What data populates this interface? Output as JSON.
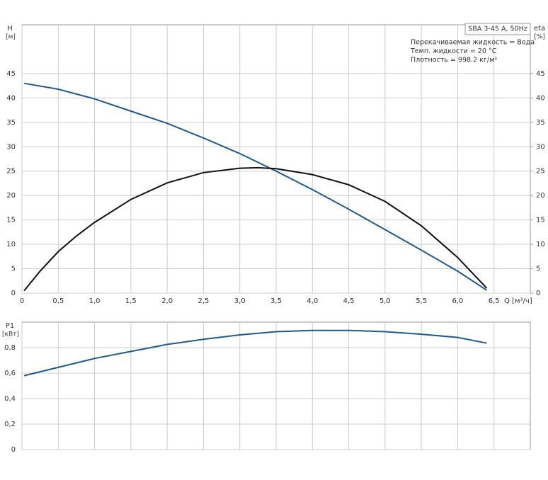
{
  "chart_data": [
    {
      "type": "line",
      "ylabel": "H",
      "yunit": "[м]",
      "y2label": "eta",
      "y2unit": "[%]",
      "xlabel": "Q [м³/ч]",
      "xlim": [
        0,
        7
      ],
      "xticks": [
        0,
        {
          "value": 0.5,
          "label": "0,5"
        },
        {
          "value": 1,
          "label": "1,0"
        },
        {
          "value": 1.5,
          "label": "1,5"
        },
        {
          "value": 2,
          "label": "2,0"
        },
        {
          "value": 2.5,
          "label": "2,5"
        },
        {
          "value": 3,
          "label": "3,0"
        },
        {
          "value": 3.5,
          "label": "3,5"
        },
        {
          "value": 4,
          "label": "4,0"
        },
        {
          "value": 4.5,
          "label": "4,5"
        },
        {
          "value": 5,
          "label": "5,0"
        },
        {
          "value": 5.5,
          "label": "5,5"
        },
        {
          "value": 6,
          "label": "6,0"
        },
        {
          "value": 6.5,
          "label": "6,5"
        }
      ],
      "ylim": [
        0,
        55
      ],
      "yticks": [
        0,
        5,
        10,
        15,
        20,
        25,
        30,
        35,
        40,
        45
      ],
      "y2lim": [
        0,
        55
      ],
      "y2ticks": [
        0,
        5,
        10,
        15,
        20,
        25,
        30,
        35,
        40,
        45
      ],
      "grid": true,
      "info_box": {
        "title": "SBA 3-45 A, 50Hz",
        "lines": [
          "Перекачиваемая жидкость = Вода",
          "Темп. жидкости = 20 °C",
          "Плотность = 998.2 кг/м³"
        ]
      },
      "series": [
        {
          "color": "#1f5a8c",
          "axis": "y",
          "x": [
            0.03,
            0.5,
            1,
            1.5,
            2,
            2.5,
            3,
            3.5,
            4,
            4.5,
            5,
            5.5,
            6,
            6.4
          ],
          "values": [
            43,
            41.8,
            39.8,
            37.3,
            34.8,
            31.8,
            28.6,
            25,
            21.2,
            17.2,
            13,
            8.8,
            4.5,
            0.6
          ]
        },
        {
          "color": "#111111",
          "axis": "y2",
          "x": [
            0.03,
            0.25,
            0.5,
            0.75,
            1,
            1.5,
            2,
            2.5,
            3,
            3.25,
            3.5,
            4,
            4.5,
            5,
            5.5,
            6,
            6.4
          ],
          "values": [
            0.5,
            4.5,
            8.5,
            11.7,
            14.5,
            19.2,
            22.6,
            24.7,
            25.6,
            25.7,
            25.5,
            24.3,
            22.2,
            18.8,
            13.8,
            7.3,
            1
          ]
        }
      ]
    },
    {
      "type": "line",
      "ylabel": "P1",
      "yunit": "[кВт]",
      "xlim": [
        0,
        7
      ],
      "xticks": [
        0,
        0.5,
        1,
        1.5,
        2,
        2.5,
        3,
        3.5,
        4,
        4.5,
        5,
        5.5,
        6,
        6.5
      ],
      "ylim": [
        0,
        1
      ],
      "yticks": [
        0,
        {
          "value": 0.2,
          "label": "0,2"
        },
        {
          "value": 0.4,
          "label": "0,4"
        },
        {
          "value": 0.6,
          "label": "0,6"
        },
        {
          "value": 0.8,
          "label": "0,8"
        }
      ],
      "grid": true,
      "series": [
        {
          "color": "#1f5a8c",
          "axis": "y",
          "x": [
            0.03,
            0.5,
            1,
            1.5,
            2,
            2.5,
            3,
            3.5,
            4,
            4.5,
            5,
            5.5,
            6,
            6.4
          ],
          "values": [
            0.58,
            0.645,
            0.715,
            0.77,
            0.825,
            0.865,
            0.9,
            0.925,
            0.935,
            0.935,
            0.925,
            0.905,
            0.88,
            0.835
          ]
        }
      ]
    }
  ]
}
